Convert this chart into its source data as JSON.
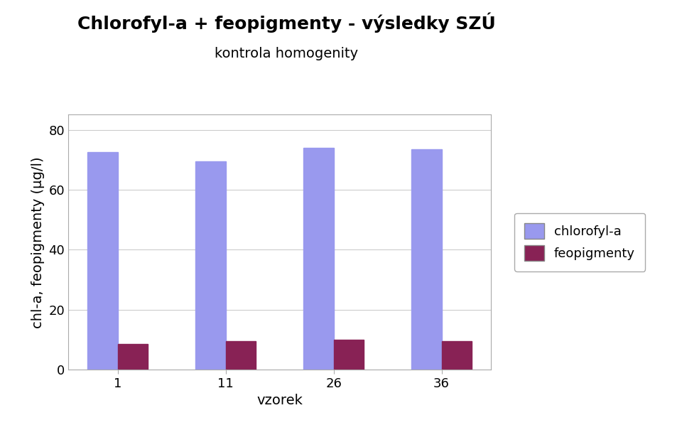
{
  "title_line1": "Chlorofyl-a + feopigmenty - výsledky SZÚ",
  "title_line2": "kontrola homogenity",
  "categories": [
    "1",
    "11",
    "26",
    "36"
  ],
  "chlorofyl_values": [
    72.5,
    69.5,
    74.0,
    73.5
  ],
  "feopigmenty_values": [
    8.5,
    9.5,
    10.0,
    9.5
  ],
  "bar_color_chlorofyl": "#9999ee",
  "bar_color_feopigmenty": "#882255",
  "xlabel": "vzorek",
  "ylabel": "chl-a, feopigmenty (μg/l)",
  "ylim": [
    0,
    85
  ],
  "yticks": [
    0,
    20,
    40,
    60,
    80
  ],
  "legend_labels": [
    "chlorofyl-a",
    "feopigmenty"
  ],
  "title_fontsize": 18,
  "subtitle_fontsize": 14,
  "axis_label_fontsize": 14,
  "tick_fontsize": 13,
  "legend_fontsize": 13,
  "bar_width": 0.28,
  "background_color": "#ffffff",
  "plot_bg_color": "#ffffff",
  "grid_color": "#cccccc",
  "spine_color": "#aaaaaa"
}
